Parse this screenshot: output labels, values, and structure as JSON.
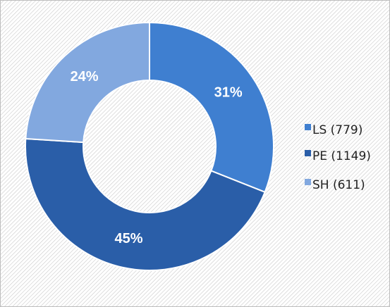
{
  "chart_data": {
    "type": "pie",
    "categories": [
      "LS (779)",
      "PE (1149)",
      "SH (611)"
    ],
    "values": [
      31,
      45,
      24
    ],
    "value_labels": [
      "31%",
      "45%",
      "24%"
    ],
    "colors": [
      "#3f7fd0",
      "#2a5ea8",
      "#82a8df"
    ],
    "donut": true,
    "legend": "right"
  }
}
